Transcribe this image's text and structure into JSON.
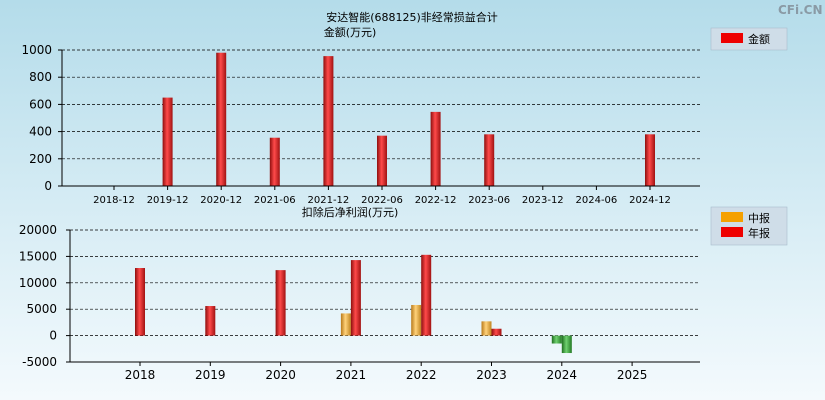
{
  "watermark": "CFi.CN",
  "chart_data": [
    {
      "type": "bar",
      "title": "安达智能(688125)非经常损益合计",
      "ylabel": "金额(万元)",
      "categories": [
        "2018-12",
        "2019-12",
        "2020-12",
        "2021-06",
        "2021-12",
        "2022-06",
        "2022-12",
        "2023-06",
        "2023-12",
        "2024-06",
        "2024-12"
      ],
      "series": [
        {
          "name": "金额",
          "values": [
            null,
            650,
            980,
            355,
            955,
            370,
            545,
            380,
            null,
            null,
            380
          ]
        }
      ],
      "ylim": [
        0,
        1000
      ],
      "yticks": [
        0,
        200,
        400,
        600,
        800,
        1000
      ],
      "grid": true,
      "legend": "top-right",
      "colors": {
        "bar": "#ee0000"
      }
    },
    {
      "type": "bar",
      "title": "扣除后净利润(万元)",
      "categories": [
        "2018",
        "2019",
        "2020",
        "2021",
        "2022",
        "2023",
        "2024",
        "2025"
      ],
      "series": [
        {
          "name": "中报",
          "values": [
            null,
            null,
            null,
            4200,
            5800,
            2700,
            -1500,
            null
          ]
        },
        {
          "name": "年报",
          "values": [
            12800,
            5600,
            12400,
            14300,
            15300,
            1300,
            -3300,
            null
          ]
        }
      ],
      "ylim": [
        -5000,
        20000
      ],
      "yticks": [
        -5000,
        0,
        5000,
        10000,
        15000,
        20000
      ],
      "grid": true,
      "legend": "top-right",
      "colors": {
        "interim": "#f5a000",
        "annual": "#ee0000",
        "negative": "#2e8b2e"
      }
    }
  ]
}
